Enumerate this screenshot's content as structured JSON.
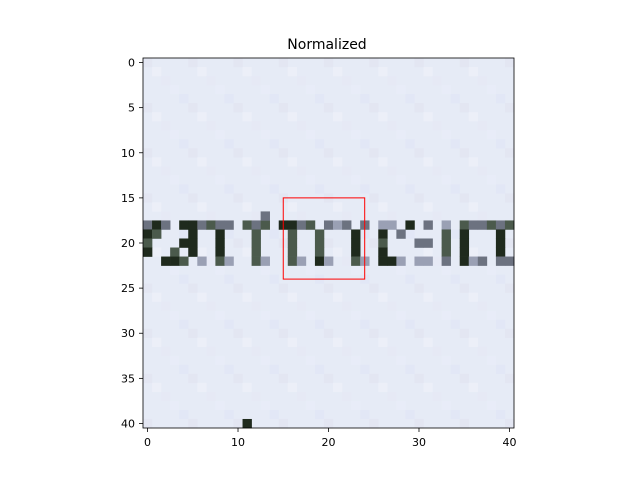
{
  "figure": {
    "title": "Normalized",
    "x_ticks": [
      "0",
      "10",
      "20",
      "30",
      "40"
    ],
    "y_ticks": [
      "0",
      "5",
      "10",
      "15",
      "20",
      "25",
      "30",
      "35",
      "40"
    ],
    "image_grid": {
      "cols": 41,
      "rows": 41
    },
    "highlight_box": {
      "x0": 15,
      "y0": 15,
      "x1": 24,
      "y1": 24,
      "color": "#ff0000"
    },
    "background_color": "#e6ebf6",
    "glyph_colors": [
      "#1f2a1d",
      "#4b5a4c",
      "#6c7280",
      "#9aa0b4",
      "#0f2a10"
    ]
  }
}
